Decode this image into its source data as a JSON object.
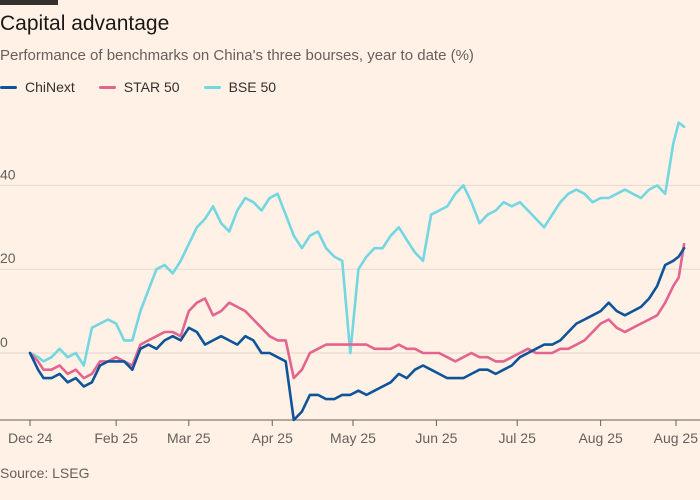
{
  "title": "Capital advantage",
  "subtitle": "Performance of benchmarks on China's three bourses, year to date (%)",
  "source": "Source: LSEG",
  "chart_data": {
    "type": "line",
    "title": "Capital advantage",
    "subtitle": "Performance of benchmarks on China's three bourses, year to date (%)",
    "xlabel": "",
    "ylabel": "",
    "ylim": [
      -16,
      58
    ],
    "y_ticks": [
      0,
      20,
      40
    ],
    "x_ticks": [
      {
        "label": "Dec 24",
        "t": 0
      },
      {
        "label": "Feb 25",
        "t": 32
      },
      {
        "label": "Mar 25",
        "t": 59
      },
      {
        "label": "Apr 25",
        "t": 90
      },
      {
        "label": "May 25",
        "t": 120
      },
      {
        "label": "Jun 25",
        "t": 151
      },
      {
        "label": "Jul 25",
        "t": 181
      },
      {
        "label": "Aug 25",
        "t": 212
      },
      {
        "label": "Aug 25",
        "t": 240
      }
    ],
    "x_range": [
      0,
      240
    ],
    "grid": "horizontal",
    "legend": "top-left",
    "series": [
      {
        "name": "ChiNext",
        "color": "#0f5499",
        "points": [
          [
            0,
            0
          ],
          [
            3,
            -4
          ],
          [
            5,
            -6
          ],
          [
            8,
            -6
          ],
          [
            11,
            -5
          ],
          [
            14,
            -7
          ],
          [
            17,
            -6
          ],
          [
            20,
            -8
          ],
          [
            23,
            -7
          ],
          [
            26,
            -3
          ],
          [
            29,
            -2
          ],
          [
            32,
            -2
          ],
          [
            35,
            -2
          ],
          [
            38,
            -4
          ],
          [
            41,
            1
          ],
          [
            44,
            2
          ],
          [
            47,
            1
          ],
          [
            50,
            3
          ],
          [
            53,
            4
          ],
          [
            56,
            3
          ],
          [
            59,
            6
          ],
          [
            62,
            5
          ],
          [
            65,
            2
          ],
          [
            68,
            3
          ],
          [
            71,
            4
          ],
          [
            74,
            3
          ],
          [
            77,
            2
          ],
          [
            80,
            4
          ],
          [
            83,
            3
          ],
          [
            86,
            0
          ],
          [
            89,
            0
          ],
          [
            92,
            -1
          ],
          [
            95,
            -2
          ],
          [
            98,
            -16
          ],
          [
            101,
            -14
          ],
          [
            104,
            -10
          ],
          [
            107,
            -10
          ],
          [
            110,
            -11
          ],
          [
            113,
            -11
          ],
          [
            116,
            -10
          ],
          [
            119,
            -10
          ],
          [
            122,
            -9
          ],
          [
            125,
            -10
          ],
          [
            128,
            -9
          ],
          [
            131,
            -8
          ],
          [
            134,
            -7
          ],
          [
            137,
            -5
          ],
          [
            140,
            -6
          ],
          [
            143,
            -4
          ],
          [
            146,
            -3
          ],
          [
            149,
            -4
          ],
          [
            152,
            -5
          ],
          [
            155,
            -6
          ],
          [
            158,
            -6
          ],
          [
            161,
            -6
          ],
          [
            164,
            -5
          ],
          [
            167,
            -4
          ],
          [
            170,
            -4
          ],
          [
            173,
            -5
          ],
          [
            176,
            -4
          ],
          [
            179,
            -3
          ],
          [
            182,
            -1
          ],
          [
            185,
            0
          ],
          [
            188,
            1
          ],
          [
            191,
            2
          ],
          [
            194,
            2
          ],
          [
            197,
            3
          ],
          [
            200,
            5
          ],
          [
            203,
            7
          ],
          [
            206,
            8
          ],
          [
            209,
            9
          ],
          [
            212,
            10
          ],
          [
            215,
            12
          ],
          [
            218,
            10
          ],
          [
            221,
            9
          ],
          [
            224,
            10
          ],
          [
            227,
            11
          ],
          [
            230,
            13
          ],
          [
            233,
            16
          ],
          [
            236,
            21
          ],
          [
            239,
            22
          ],
          [
            241,
            23
          ],
          [
            243,
            25
          ]
        ]
      },
      {
        "name": "STAR 50",
        "color": "#e3648e",
        "points": [
          [
            0,
            0
          ],
          [
            3,
            -2
          ],
          [
            5,
            -4
          ],
          [
            8,
            -4
          ],
          [
            11,
            -3
          ],
          [
            14,
            -5
          ],
          [
            17,
            -4
          ],
          [
            20,
            -6
          ],
          [
            23,
            -5
          ],
          [
            26,
            -2
          ],
          [
            29,
            -2
          ],
          [
            32,
            -1
          ],
          [
            35,
            -2
          ],
          [
            38,
            -3
          ],
          [
            41,
            2
          ],
          [
            44,
            3
          ],
          [
            47,
            4
          ],
          [
            50,
            5
          ],
          [
            53,
            5
          ],
          [
            56,
            4
          ],
          [
            59,
            10
          ],
          [
            62,
            12
          ],
          [
            65,
            13
          ],
          [
            68,
            9
          ],
          [
            71,
            10
          ],
          [
            74,
            12
          ],
          [
            77,
            11
          ],
          [
            80,
            10
          ],
          [
            83,
            8
          ],
          [
            86,
            6
          ],
          [
            89,
            4
          ],
          [
            92,
            3
          ],
          [
            95,
            3
          ],
          [
            98,
            -6
          ],
          [
            101,
            -4
          ],
          [
            104,
            0
          ],
          [
            107,
            1
          ],
          [
            110,
            2
          ],
          [
            113,
            2
          ],
          [
            116,
            2
          ],
          [
            119,
            2
          ],
          [
            122,
            2
          ],
          [
            125,
            2
          ],
          [
            128,
            1
          ],
          [
            131,
            1
          ],
          [
            134,
            1
          ],
          [
            137,
            2
          ],
          [
            140,
            1
          ],
          [
            143,
            1
          ],
          [
            146,
            0
          ],
          [
            149,
            0
          ],
          [
            152,
            0
          ],
          [
            155,
            -1
          ],
          [
            158,
            -2
          ],
          [
            161,
            -1
          ],
          [
            164,
            0
          ],
          [
            167,
            -1
          ],
          [
            170,
            -1
          ],
          [
            173,
            -2
          ],
          [
            176,
            -2
          ],
          [
            179,
            -1
          ],
          [
            182,
            0
          ],
          [
            185,
            1
          ],
          [
            188,
            0
          ],
          [
            191,
            0
          ],
          [
            194,
            0
          ],
          [
            197,
            1
          ],
          [
            200,
            1
          ],
          [
            203,
            2
          ],
          [
            206,
            3
          ],
          [
            209,
            5
          ],
          [
            212,
            7
          ],
          [
            215,
            8
          ],
          [
            218,
            6
          ],
          [
            221,
            5
          ],
          [
            224,
            6
          ],
          [
            227,
            7
          ],
          [
            230,
            8
          ],
          [
            233,
            9
          ],
          [
            236,
            12
          ],
          [
            239,
            16
          ],
          [
            241,
            18
          ],
          [
            243,
            26
          ]
        ]
      },
      {
        "name": "BSE 50",
        "color": "#73d6e1",
        "points": [
          [
            0,
            0
          ],
          [
            3,
            -1
          ],
          [
            5,
            -2
          ],
          [
            8,
            -1
          ],
          [
            11,
            1
          ],
          [
            14,
            -1
          ],
          [
            17,
            0
          ],
          [
            20,
            -3
          ],
          [
            23,
            6
          ],
          [
            26,
            7
          ],
          [
            29,
            8
          ],
          [
            32,
            7
          ],
          [
            35,
            3
          ],
          [
            38,
            3
          ],
          [
            41,
            10
          ],
          [
            44,
            15
          ],
          [
            47,
            20
          ],
          [
            50,
            21
          ],
          [
            53,
            19
          ],
          [
            56,
            22
          ],
          [
            59,
            26
          ],
          [
            62,
            30
          ],
          [
            65,
            32
          ],
          [
            68,
            35
          ],
          [
            71,
            31
          ],
          [
            74,
            29
          ],
          [
            77,
            34
          ],
          [
            80,
            37
          ],
          [
            83,
            36
          ],
          [
            86,
            34
          ],
          [
            89,
            37
          ],
          [
            92,
            38
          ],
          [
            95,
            33
          ],
          [
            98,
            28
          ],
          [
            101,
            25
          ],
          [
            104,
            28
          ],
          [
            107,
            29
          ],
          [
            110,
            25
          ],
          [
            113,
            23
          ],
          [
            116,
            22
          ],
          [
            119,
            0
          ],
          [
            122,
            20
          ],
          [
            125,
            23
          ],
          [
            128,
            25
          ],
          [
            131,
            25
          ],
          [
            134,
            28
          ],
          [
            137,
            30
          ],
          [
            140,
            27
          ],
          [
            143,
            24
          ],
          [
            146,
            22
          ],
          [
            149,
            33
          ],
          [
            152,
            34
          ],
          [
            155,
            35
          ],
          [
            158,
            38
          ],
          [
            161,
            40
          ],
          [
            164,
            36
          ],
          [
            167,
            31
          ],
          [
            170,
            33
          ],
          [
            173,
            34
          ],
          [
            176,
            36
          ],
          [
            179,
            35
          ],
          [
            182,
            36
          ],
          [
            185,
            34
          ],
          [
            188,
            32
          ],
          [
            191,
            30
          ],
          [
            194,
            33
          ],
          [
            197,
            36
          ],
          [
            200,
            38
          ],
          [
            203,
            39
          ],
          [
            206,
            38
          ],
          [
            209,
            36
          ],
          [
            212,
            37
          ],
          [
            215,
            37
          ],
          [
            218,
            38
          ],
          [
            221,
            39
          ],
          [
            224,
            38
          ],
          [
            227,
            37
          ],
          [
            230,
            39
          ],
          [
            233,
            40
          ],
          [
            236,
            38
          ],
          [
            239,
            50
          ],
          [
            241,
            55
          ],
          [
            243,
            54
          ]
        ]
      }
    ]
  }
}
